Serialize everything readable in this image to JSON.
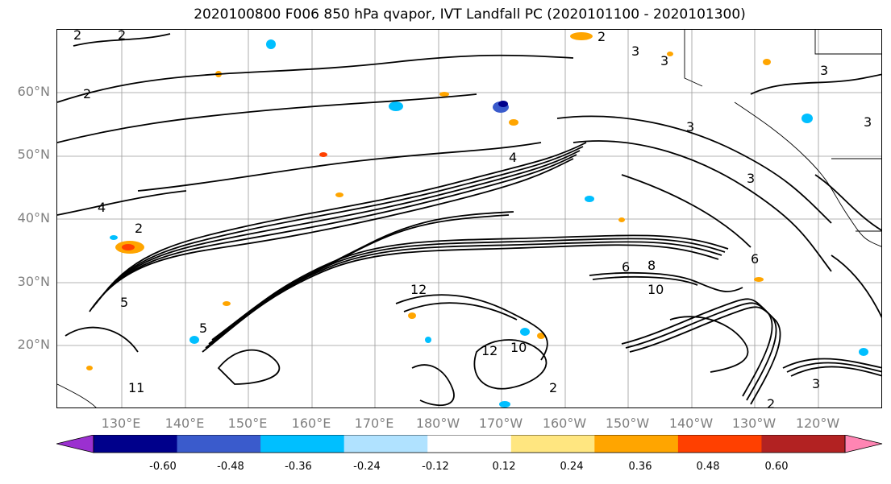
{
  "title": "2020100800 F006 850 hPa qvapor, IVT Landfall PC (2020101100 - 2020101300)",
  "map": {
    "lat_labels": [
      "60°N",
      "50°N",
      "40°N",
      "30°N",
      "20°N"
    ],
    "lon_labels": [
      "130°E",
      "140°E",
      "150°E",
      "160°E",
      "170°E",
      "180°W",
      "170°W",
      "160°W",
      "150°W",
      "140°W",
      "130°W",
      "120°W"
    ],
    "contour_labels": [
      "2",
      "2",
      "2",
      "2",
      "3",
      "3",
      "3",
      "3",
      "4",
      "4",
      "2",
      "3",
      "3",
      "6",
      "8",
      "10",
      "12",
      "5",
      "10",
      "12",
      "11",
      "2",
      "2",
      "3",
      "6",
      "5"
    ]
  },
  "colorbar": {
    "colors": [
      "#9b30d0",
      "#00008b",
      "#3a5bcc",
      "#00bfff",
      "#b0e2ff",
      "#ffffff",
      "#ffe680",
      "#ffa500",
      "#ff4000",
      "#b22222",
      "#ff85b3"
    ],
    "tick_labels": [
      "-0.60",
      "-0.48",
      "-0.36",
      "-0.24",
      "-0.12",
      "0.12",
      "0.24",
      "0.36",
      "0.48",
      "0.60"
    ]
  }
}
